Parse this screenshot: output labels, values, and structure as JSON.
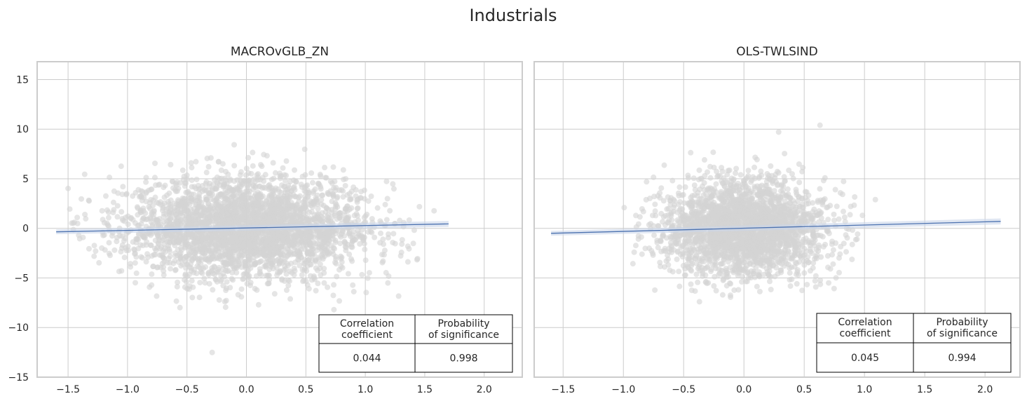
{
  "title": "Industrials",
  "colors": {
    "points": "#d3d3d3",
    "line": "#4c72b0",
    "band": "#c9d5ea",
    "grid": "#cccccc",
    "frame": "#cccccc"
  },
  "chart_data": [
    {
      "type": "scatter",
      "title": "MACROvGLB_ZN",
      "xlim": [
        -1.76,
        2.32
      ],
      "ylim": [
        -15,
        16.8
      ],
      "xticks": [
        -1.5,
        -1.0,
        -0.5,
        0.0,
        0.5,
        1.0,
        1.5,
        2.0
      ],
      "xtick_labels": [
        "−1.5",
        "−1.0",
        "−0.5",
        "0.0",
        "0.5",
        "1.0",
        "1.5",
        "2.0"
      ],
      "yticks": [
        -15,
        -10,
        -5,
        0,
        5,
        10,
        15
      ],
      "ytick_labels": [
        "−15",
        "−10",
        "−5",
        "0",
        "5",
        "10",
        "15"
      ],
      "grid": true,
      "regression_line": {
        "x": [
          -1.6,
          1.7
        ],
        "y": [
          -0.35,
          0.45
        ]
      },
      "points_description_visible": "dense cloud of several thousand grey points centered near (0, 0)",
      "table": {
        "headers": [
          "Correlation\ncoefficient",
          "Probability\nof significance"
        ],
        "values": [
          "0.044",
          "0.998"
        ]
      }
    },
    {
      "type": "scatter",
      "title": "OLS-TWLSIND",
      "xlim": [
        -1.74,
        2.29
      ],
      "ylim": [
        -15,
        16.8
      ],
      "xticks": [
        -1.5,
        -1.0,
        -0.5,
        0.0,
        0.5,
        1.0,
        1.5,
        2.0
      ],
      "xtick_labels": [
        "−1.5",
        "−1.0",
        "−0.5",
        "0.0",
        "0.5",
        "1.0",
        "1.5",
        "2.0"
      ],
      "yticks": [
        -15,
        -10,
        -5,
        0,
        5,
        10,
        15
      ],
      "grid": true,
      "shared_y": true,
      "regression_line": {
        "x": [
          -1.6,
          2.13
        ],
        "y": [
          -0.5,
          0.7
        ]
      },
      "table": {
        "headers": [
          "Correlation\ncoefficient",
          "Probability\nof significance"
        ],
        "values": [
          "0.045",
          "0.994"
        ]
      }
    }
  ]
}
